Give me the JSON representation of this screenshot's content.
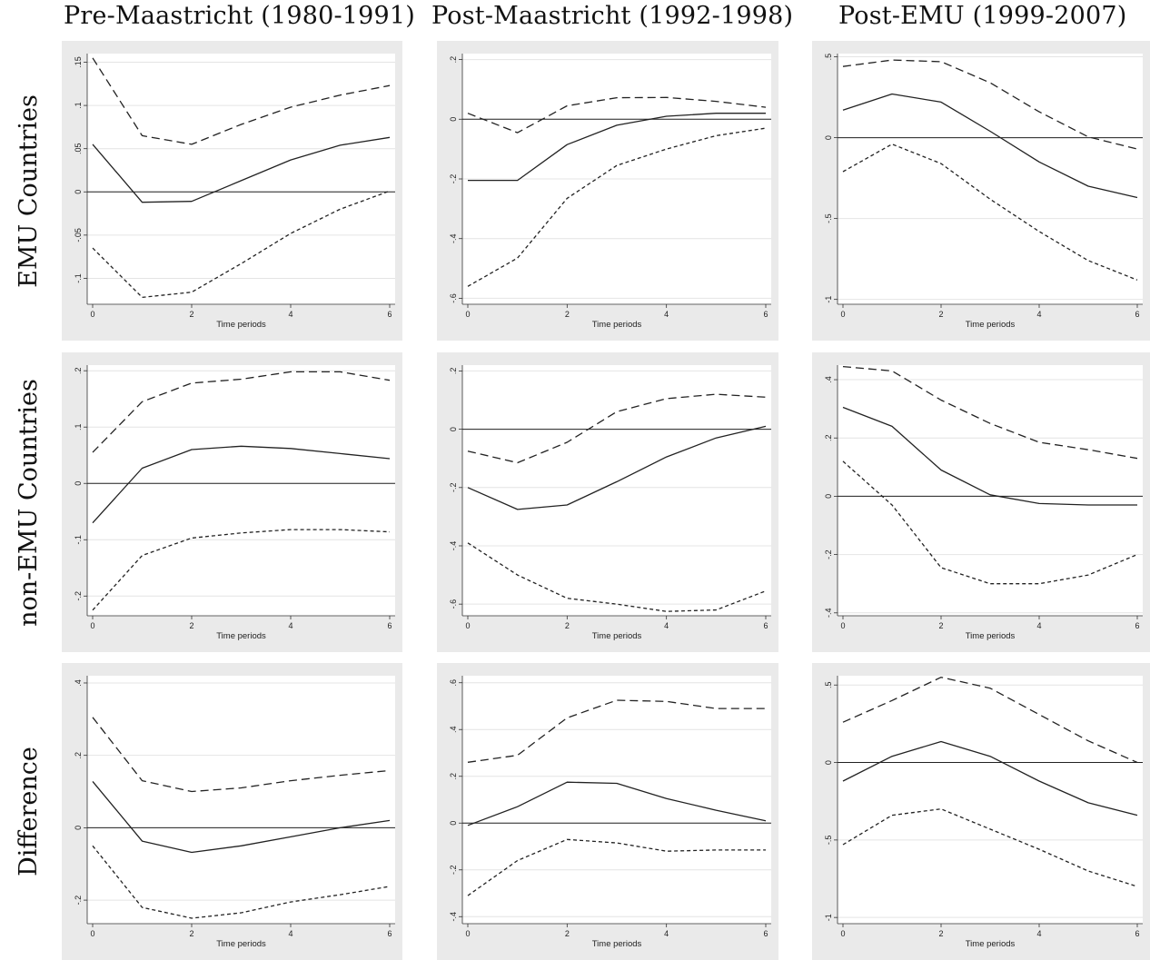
{
  "column_titles": [
    "Pre-Maastricht (1980-1991)",
    "Post-Maastricht (1992-1998)",
    "Post-EMU (1999-2007)"
  ],
  "row_labels": [
    "EMU Countries",
    "non-EMU Countries",
    "Difference"
  ],
  "line_color": "#222222",
  "chart_data": [
    {
      "type": "line",
      "row": "EMU Countries",
      "column": "Pre-Maastricht (1980-1991)",
      "xlabel": "Time periods",
      "x": [
        0,
        1,
        2,
        3,
        4,
        5,
        6
      ],
      "xticks": [
        "0",
        "2",
        "4",
        "6"
      ],
      "ylim": [
        -0.13,
        0.16
      ],
      "yticks": [
        -0.1,
        -0.05,
        0,
        0.05,
        0.1,
        0.15
      ],
      "ytick_labels": [
        "-.1",
        "-.05",
        "0",
        ".05",
        ".1",
        ".15"
      ],
      "series": [
        {
          "style": "long-dash",
          "values": [
            0.155,
            0.065,
            0.055,
            0.078,
            0.098,
            0.112,
            0.123
          ]
        },
        {
          "style": "solid",
          "values": [
            0.055,
            -0.012,
            -0.011,
            0.013,
            0.037,
            0.054,
            0.063
          ]
        },
        {
          "style": "short-dash",
          "values": [
            -0.065,
            -0.122,
            -0.116,
            -0.083,
            -0.048,
            -0.02,
            0.001
          ]
        }
      ]
    },
    {
      "type": "line",
      "row": "EMU Countries",
      "column": "Post-Maastricht (1992-1998)",
      "xlabel": "Time periods",
      "x": [
        0,
        1,
        2,
        3,
        4,
        5,
        6
      ],
      "xticks": [
        "0",
        "2",
        "4",
        "6"
      ],
      "ylim": [
        -0.62,
        0.22
      ],
      "yticks": [
        -0.6,
        -0.4,
        -0.2,
        0,
        0.2
      ],
      "ytick_labels": [
        "-.6",
        "-.4",
        "-.2",
        "0",
        ".2"
      ],
      "series": [
        {
          "style": "long-dash",
          "values": [
            0.02,
            -0.045,
            0.045,
            0.072,
            0.073,
            0.06,
            0.04
          ]
        },
        {
          "style": "solid",
          "values": [
            -0.205,
            -0.205,
            -0.085,
            -0.02,
            0.01,
            0.02,
            0.02
          ]
        },
        {
          "style": "short-dash",
          "values": [
            -0.56,
            -0.465,
            -0.265,
            -0.155,
            -0.1,
            -0.055,
            -0.03
          ]
        }
      ]
    },
    {
      "type": "line",
      "row": "EMU Countries",
      "column": "Post-EMU (1999-2007)",
      "xlabel": "Time periods",
      "x": [
        0,
        1,
        2,
        3,
        4,
        5,
        6
      ],
      "xticks": [
        "0",
        "2",
        "4",
        "6"
      ],
      "ylim": [
        -1.03,
        0.52
      ],
      "yticks": [
        -1,
        -0.5,
        0,
        0.5
      ],
      "ytick_labels": [
        "-1",
        "-.5",
        "0",
        ".5"
      ],
      "series": [
        {
          "style": "long-dash",
          "values": [
            0.44,
            0.48,
            0.47,
            0.34,
            0.16,
            0.005,
            -0.07
          ]
        },
        {
          "style": "solid",
          "values": [
            0.17,
            0.27,
            0.22,
            0.04,
            -0.15,
            -0.3,
            -0.37
          ]
        },
        {
          "style": "short-dash",
          "values": [
            -0.21,
            -0.04,
            -0.16,
            -0.38,
            -0.58,
            -0.76,
            -0.88
          ]
        }
      ]
    },
    {
      "type": "line",
      "row": "non-EMU Countries",
      "column": "Pre-Maastricht (1980-1991)",
      "xlabel": "Time periods",
      "x": [
        0,
        1,
        2,
        3,
        4,
        5,
        6
      ],
      "xticks": [
        "0",
        "2",
        "4",
        "6"
      ],
      "ylim": [
        -0.235,
        0.21
      ],
      "yticks": [
        -0.2,
        -0.1,
        0,
        0.1,
        0.2
      ],
      "ytick_labels": [
        "-.2",
        "-.1",
        "0",
        ".1",
        ".2"
      ],
      "series": [
        {
          "style": "long-dash",
          "values": [
            0.055,
            0.145,
            0.178,
            0.185,
            0.198,
            0.198,
            0.183
          ]
        },
        {
          "style": "solid",
          "values": [
            -0.07,
            0.027,
            0.06,
            0.066,
            0.062,
            0.053,
            0.044
          ]
        },
        {
          "style": "short-dash",
          "values": [
            -0.225,
            -0.128,
            -0.097,
            -0.088,
            -0.082,
            -0.082,
            -0.086
          ]
        }
      ]
    },
    {
      "type": "line",
      "row": "non-EMU Countries",
      "column": "Post-Maastricht (1992-1998)",
      "xlabel": "Time periods",
      "x": [
        0,
        1,
        2,
        3,
        4,
        5,
        6
      ],
      "xticks": [
        "0",
        "2",
        "4",
        "6"
      ],
      "ylim": [
        -0.64,
        0.22
      ],
      "yticks": [
        -0.6,
        -0.4,
        -0.2,
        0,
        0.2
      ],
      "ytick_labels": [
        "-.6",
        "-.4",
        "-.2",
        "0",
        ".2"
      ],
      "series": [
        {
          "style": "long-dash",
          "values": [
            -0.075,
            -0.115,
            -0.045,
            0.06,
            0.105,
            0.12,
            0.11
          ]
        },
        {
          "style": "solid",
          "values": [
            -0.2,
            -0.275,
            -0.26,
            -0.18,
            -0.095,
            -0.03,
            0.01
          ]
        },
        {
          "style": "short-dash",
          "values": [
            -0.39,
            -0.5,
            -0.58,
            -0.6,
            -0.625,
            -0.62,
            -0.555
          ]
        }
      ]
    },
    {
      "type": "line",
      "row": "non-EMU Countries",
      "column": "Post-EMU (1999-2007)",
      "xlabel": "Time periods",
      "x": [
        0,
        1,
        2,
        3,
        4,
        5,
        6
      ],
      "xticks": [
        "0",
        "2",
        "4",
        "6"
      ],
      "ylim": [
        -0.41,
        0.45
      ],
      "yticks": [
        -0.4,
        -0.2,
        0,
        0.2,
        0.4
      ],
      "ytick_labels": [
        "-.4",
        "-.2",
        "0",
        ".2",
        ".4"
      ],
      "series": [
        {
          "style": "long-dash",
          "values": [
            0.445,
            0.43,
            0.33,
            0.25,
            0.185,
            0.16,
            0.13
          ]
        },
        {
          "style": "solid",
          "values": [
            0.305,
            0.24,
            0.09,
            0.005,
            -0.025,
            -0.03,
            -0.03
          ]
        },
        {
          "style": "short-dash",
          "values": [
            0.12,
            -0.03,
            -0.245,
            -0.3,
            -0.3,
            -0.27,
            -0.2
          ]
        }
      ]
    },
    {
      "type": "line",
      "row": "Difference",
      "column": "Pre-Maastricht (1980-1991)",
      "xlabel": "Time periods",
      "x": [
        0,
        1,
        2,
        3,
        4,
        5,
        6
      ],
      "xticks": [
        "0",
        "2",
        "4",
        "6"
      ],
      "ylim": [
        -0.265,
        0.42
      ],
      "yticks": [
        -0.2,
        0,
        0.2,
        0.4
      ],
      "ytick_labels": [
        "-.2",
        "0",
        ".2",
        ".4"
      ],
      "series": [
        {
          "style": "long-dash",
          "values": [
            0.305,
            0.13,
            0.1,
            0.11,
            0.13,
            0.145,
            0.158
          ]
        },
        {
          "style": "solid",
          "values": [
            0.128,
            -0.037,
            -0.068,
            -0.05,
            -0.025,
            0.0,
            0.02
          ]
        },
        {
          "style": "short-dash",
          "values": [
            -0.05,
            -0.22,
            -0.25,
            -0.235,
            -0.205,
            -0.185,
            -0.162
          ]
        }
      ]
    },
    {
      "type": "line",
      "row": "Difference",
      "column": "Post-Maastricht (1992-1998)",
      "xlabel": "Time periods",
      "x": [
        0,
        1,
        2,
        3,
        4,
        5,
        6
      ],
      "xticks": [
        "0",
        "2",
        "4",
        "6"
      ],
      "ylim": [
        -0.43,
        0.63
      ],
      "yticks": [
        -0.4,
        -0.2,
        0,
        0.2,
        0.4,
        0.6
      ],
      "ytick_labels": [
        "-.4",
        "-.2",
        "0",
        ".2",
        ".4",
        ".6"
      ],
      "series": [
        {
          "style": "long-dash",
          "values": [
            0.26,
            0.29,
            0.45,
            0.525,
            0.52,
            0.49,
            0.49
          ]
        },
        {
          "style": "solid",
          "values": [
            -0.01,
            0.07,
            0.175,
            0.17,
            0.105,
            0.055,
            0.01
          ]
        },
        {
          "style": "short-dash",
          "values": [
            -0.31,
            -0.16,
            -0.07,
            -0.085,
            -0.12,
            -0.115,
            -0.115
          ]
        }
      ]
    },
    {
      "type": "line",
      "row": "Difference",
      "column": "Post-EMU (1999-2007)",
      "xlabel": "Time periods",
      "x": [
        0,
        1,
        2,
        3,
        4,
        5,
        6
      ],
      "xticks": [
        "0",
        "2",
        "4",
        "6"
      ],
      "ylim": [
        -1.04,
        0.56
      ],
      "yticks": [
        -1,
        -0.5,
        0,
        0.5
      ],
      "ytick_labels": [
        "-1",
        "-.5",
        "0",
        ".5"
      ],
      "series": [
        {
          "style": "long-dash",
          "values": [
            0.26,
            0.4,
            0.55,
            0.48,
            0.31,
            0.14,
            0.0
          ]
        },
        {
          "style": "solid",
          "values": [
            -0.12,
            0.04,
            0.135,
            0.04,
            -0.12,
            -0.26,
            -0.34
          ]
        },
        {
          "style": "short-dash",
          "values": [
            -0.53,
            -0.34,
            -0.3,
            -0.43,
            -0.56,
            -0.7,
            -0.8
          ]
        }
      ]
    }
  ]
}
